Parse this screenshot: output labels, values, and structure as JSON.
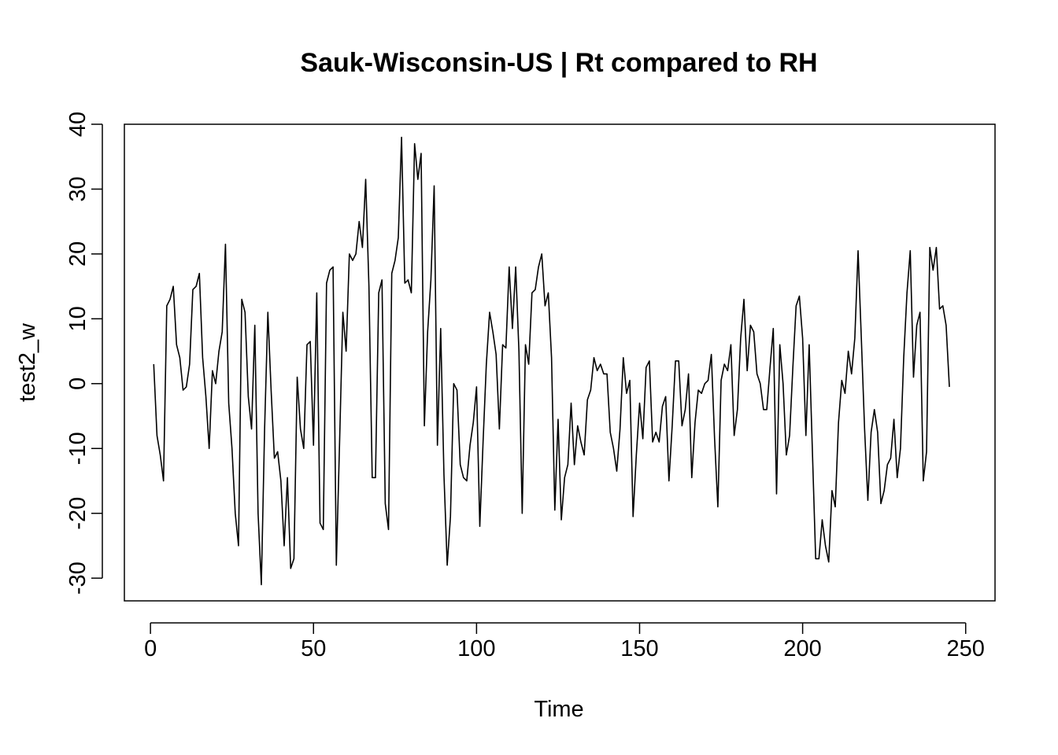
{
  "chart_data": {
    "type": "line",
    "title": "Sauk-Wisconsin-US | Rt compared to RH",
    "xlabel": "Time",
    "ylabel": "test2_w",
    "xlim": [
      -8,
      259
    ],
    "ylim": [
      -33.5,
      40
    ],
    "xticks": [
      0,
      50,
      100,
      150,
      200,
      250
    ],
    "yticks": [
      -30,
      -20,
      -10,
      0,
      10,
      20,
      30,
      40
    ],
    "xtick_labels": [
      "0",
      "50",
      "100",
      "150",
      "200",
      "250"
    ],
    "ytick_labels": [
      "-30",
      "-20",
      "-10",
      "0",
      "10",
      "20",
      "30",
      "40"
    ],
    "grid": false,
    "series": [
      {
        "color": "#000000",
        "y": [
          3,
          -8,
          -11,
          -15,
          12,
          13,
          15,
          6,
          4,
          -1,
          -0.5,
          3,
          14.5,
          15,
          17,
          4,
          -2,
          -10,
          2,
          0,
          5,
          8,
          21.5,
          -3,
          -10,
          -20,
          -25,
          13,
          11,
          -2,
          -7,
          9,
          -20,
          -31,
          -7,
          11,
          -1,
          -11.5,
          -10.5,
          -15,
          -25,
          -14.5,
          -28.5,
          -27,
          1,
          -7,
          -10,
          6,
          6.5,
          -9.5,
          14,
          -21.5,
          -22.5,
          15.5,
          17.5,
          18,
          -28,
          -9,
          11,
          5,
          20,
          19,
          20,
          25,
          21,
          31.5,
          15,
          -14.5,
          -14.5,
          14,
          16,
          -18.5,
          -22.5,
          17,
          19,
          22.5,
          38,
          15.5,
          16,
          14,
          37,
          31.5,
          35.5,
          -6.5,
          8,
          16,
          30.5,
          -9.5,
          8.5,
          -14,
          -28,
          -20.5,
          0,
          -1,
          -12.5,
          -14.5,
          -15,
          -9.5,
          -6,
          -0.5,
          -22,
          -9,
          3,
          11,
          8,
          4.5,
          -7,
          6,
          5.5,
          18,
          8.5,
          18,
          5,
          -20,
          6,
          3,
          14,
          14.5,
          18,
          20,
          12,
          14,
          4,
          -19.5,
          -5.5,
          -21,
          -14.5,
          -12.5,
          -3,
          -12.5,
          -6.5,
          -9,
          -11,
          -2.5,
          -1,
          4,
          2,
          3,
          1.5,
          1.5,
          -7.5,
          -10,
          -13.5,
          -7,
          4,
          -1.5,
          0.5,
          -20.5,
          -11,
          -3,
          -8.5,
          2.5,
          3.5,
          -9,
          -7.5,
          -9,
          -3.5,
          -2,
          -15,
          -6.5,
          3.5,
          3.5,
          -6.5,
          -4,
          1.5,
          -14.5,
          -6,
          -1,
          -1.5,
          0,
          0.5,
          4.5,
          -8.5,
          -19,
          0.5,
          3,
          2,
          6,
          -8,
          -4,
          7,
          13,
          2,
          9,
          8,
          1.5,
          0,
          -4,
          -4,
          2.5,
          8.5,
          -17,
          6,
          0,
          -11,
          -8,
          2.5,
          12,
          13.5,
          7,
          -8,
          6,
          -10.5,
          -27,
          -27,
          -21,
          -25,
          -27.5,
          -16.5,
          -19,
          -6,
          0.5,
          -1.5,
          5,
          1.5,
          7,
          20.5,
          7,
          -7,
          -18,
          -7.5,
          -4,
          -7.5,
          -18.5,
          -16.5,
          -12.5,
          -11.5,
          -5.5,
          -14.5,
          -10,
          4,
          14,
          20.5,
          1,
          9,
          11,
          -15,
          -10.5,
          21,
          17.5,
          21,
          11.5,
          12,
          9,
          -0.5
        ]
      }
    ]
  }
}
